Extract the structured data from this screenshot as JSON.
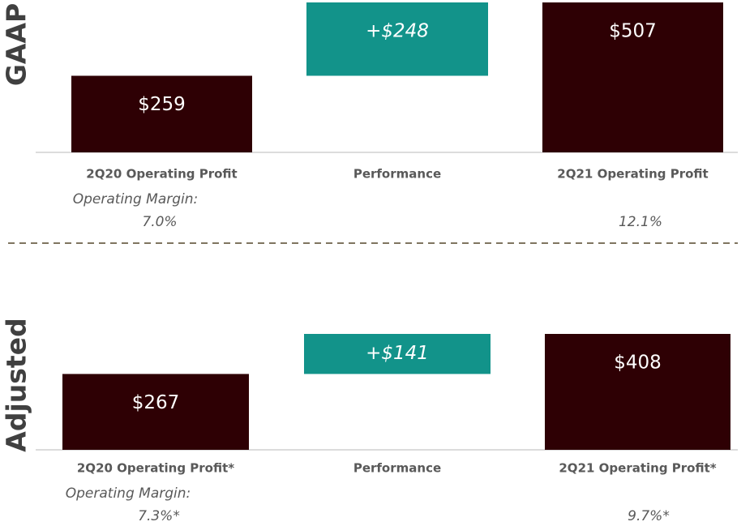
{
  "chart_data": [
    {
      "type": "waterfall",
      "section_label": "GAAP",
      "categories": [
        "2Q20 Operating Profit",
        "Performance",
        "2Q21 Operating Profit"
      ],
      "values": [
        259,
        248,
        507
      ],
      "value_labels": [
        "$259",
        "+$248",
        "$507"
      ],
      "colors": [
        "#2e0004",
        "#12938a",
        "#2e0004"
      ],
      "margin_label": "Operating Margin:",
      "margin_values": [
        "7.0%",
        null,
        "12.1%"
      ]
    },
    {
      "type": "waterfall",
      "section_label": "Adjusted",
      "categories": [
        "2Q20 Operating Profit*",
        "Performance",
        "2Q21 Operating Profit*"
      ],
      "values": [
        267,
        141,
        408
      ],
      "value_labels": [
        "$267",
        "+$141",
        "$408"
      ],
      "colors": [
        "#2e0004",
        "#12938a",
        "#2e0004"
      ],
      "margin_label": "Operating Margin:",
      "margin_values": [
        "7.3%*",
        null,
        "9.7%*"
      ]
    }
  ]
}
